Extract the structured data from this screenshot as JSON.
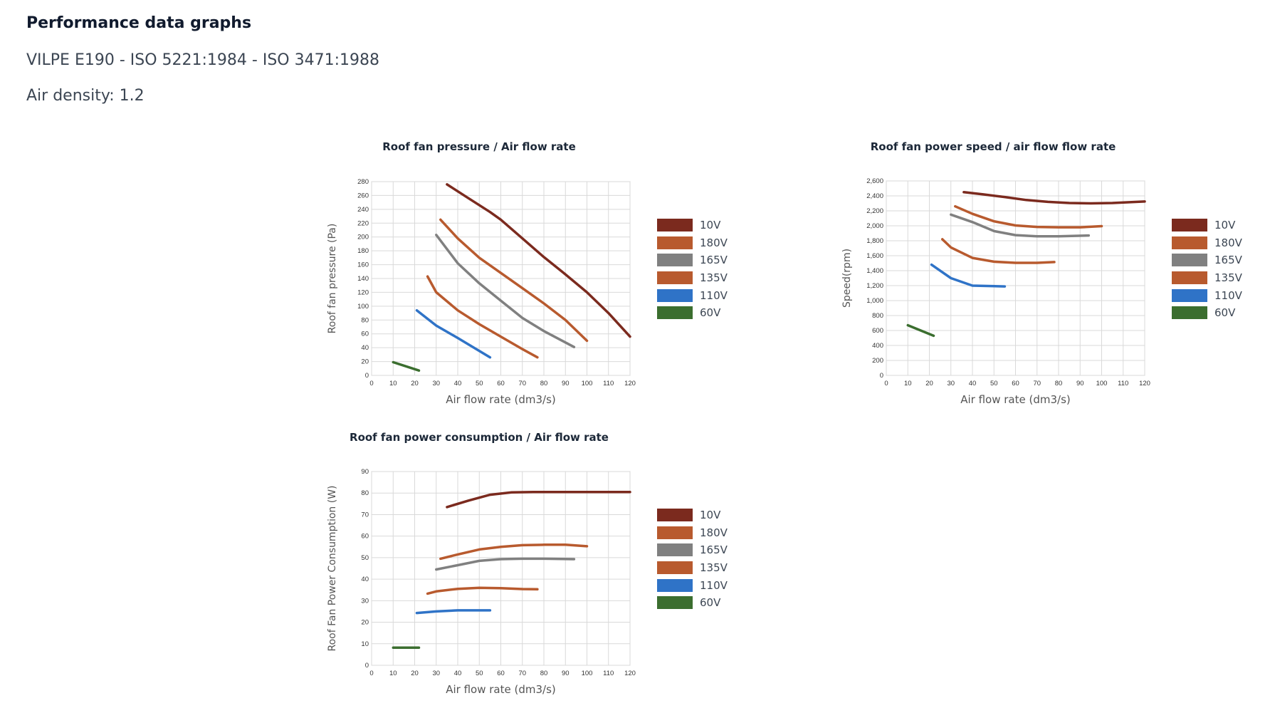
{
  "page": {
    "title": "Performance data graphs",
    "subtitle": "VILPE E190 - ISO 5221:1984 - ISO 3471:1988",
    "air_density": "Air density: 1.2"
  },
  "colors": {
    "10V": "#7b2a1e",
    "180V": "#b85a2e",
    "165V": "#808080",
    "135V": "#b85a2e",
    "110V": "#2f73c7",
    "60V": "#3b6e2f"
  },
  "chart_data": [
    {
      "type": "line",
      "title": "Roof fan pressure / Air flow rate",
      "xlabel": "Air flow rate (dm3/s)",
      "ylabel": "Roof fan pressure (Pa)",
      "xlim": [
        0,
        120
      ],
      "ylim": [
        0,
        280
      ],
      "xticks": [
        0,
        10,
        20,
        30,
        40,
        50,
        60,
        70,
        80,
        90,
        100,
        110,
        120
      ],
      "yticks": [
        0,
        20,
        40,
        60,
        80,
        100,
        120,
        140,
        160,
        180,
        200,
        220,
        240,
        260,
        280
      ],
      "ytick_labels": [
        "0",
        "20",
        "40",
        "60",
        "80",
        "100",
        "120",
        "140",
        "160",
        "180",
        "200",
        "220",
        "240",
        "260",
        "280"
      ],
      "grid": true,
      "legend_position": "right",
      "series": [
        {
          "name": "10V",
          "x": [
            35,
            45,
            55,
            60,
            70,
            80,
            90,
            100,
            110,
            120
          ],
          "y": [
            276,
            256,
            236,
            225,
            198,
            171,
            146,
            120,
            90,
            56
          ]
        },
        {
          "name": "180V",
          "x": [
            32,
            40,
            50,
            60,
            70,
            80,
            90,
            100
          ],
          "y": [
            225,
            198,
            170,
            148,
            126,
            104,
            80,
            50
          ]
        },
        {
          "name": "165V",
          "x": [
            30,
            40,
            50,
            60,
            70,
            80,
            94
          ],
          "y": [
            203,
            162,
            133,
            108,
            83,
            64,
            41
          ]
        },
        {
          "name": "135V",
          "x": [
            26,
            30,
            40,
            50,
            60,
            70,
            77
          ],
          "y": [
            143,
            120,
            94,
            74,
            56,
            38,
            26
          ]
        },
        {
          "name": "110V",
          "x": [
            21,
            30,
            40,
            55
          ],
          "y": [
            94,
            72,
            54,
            26
          ]
        },
        {
          "name": "60V",
          "x": [
            10,
            22
          ],
          "y": [
            19,
            7
          ]
        }
      ]
    },
    {
      "type": "line",
      "title": "Roof fan power speed / air flow flow rate",
      "xlabel": "Air flow rate (dm3/s)",
      "ylabel": "Speed(rpm)",
      "xlim": [
        0,
        120
      ],
      "ylim": [
        0,
        2600
      ],
      "xticks": [
        0,
        10,
        20,
        30,
        40,
        50,
        60,
        70,
        80,
        90,
        100,
        110,
        120
      ],
      "yticks": [
        0,
        200,
        400,
        600,
        800,
        1000,
        1200,
        1400,
        1600,
        1800,
        2000,
        2200,
        2400,
        2600
      ],
      "ytick_labels": [
        "0",
        "200",
        "400",
        "600",
        "800",
        "1,000",
        "1,200",
        "1,400",
        "1,600",
        "1,800",
        "2,000",
        "2,200",
        "2,400",
        "2,600"
      ],
      "grid": true,
      "legend_position": "right",
      "series": [
        {
          "name": "10V",
          "x": [
            36,
            45,
            55,
            65,
            75,
            85,
            95,
            105,
            120
          ],
          "y": [
            2450,
            2420,
            2385,
            2345,
            2320,
            2305,
            2300,
            2305,
            2325
          ]
        },
        {
          "name": "180V",
          "x": [
            32,
            40,
            50,
            60,
            70,
            80,
            90,
            100
          ],
          "y": [
            2260,
            2160,
            2060,
            2005,
            1985,
            1980,
            1980,
            1995
          ]
        },
        {
          "name": "165V",
          "x": [
            30,
            40,
            50,
            60,
            70,
            80,
            94
          ],
          "y": [
            2150,
            2050,
            1930,
            1875,
            1860,
            1860,
            1870
          ]
        },
        {
          "name": "135V",
          "x": [
            26,
            30,
            40,
            50,
            60,
            70,
            78
          ],
          "y": [
            1820,
            1710,
            1570,
            1520,
            1505,
            1505,
            1515
          ]
        },
        {
          "name": "110V",
          "x": [
            21,
            30,
            40,
            55
          ],
          "y": [
            1480,
            1300,
            1200,
            1190
          ]
        },
        {
          "name": "60V",
          "x": [
            10,
            22
          ],
          "y": [
            670,
            530
          ]
        }
      ]
    },
    {
      "type": "line",
      "title": "Roof fan power consumption / Air flow rate",
      "xlabel": "Air flow rate (dm3/s)",
      "ylabel": "Roof Fan Power Consumption (W)",
      "xlim": [
        0,
        120
      ],
      "ylim": [
        0,
        90
      ],
      "xticks": [
        0,
        10,
        20,
        30,
        40,
        50,
        60,
        70,
        80,
        90,
        100,
        110,
        120
      ],
      "yticks": [
        0,
        10,
        20,
        30,
        40,
        50,
        60,
        70,
        80,
        90
      ],
      "ytick_labels": [
        "0",
        "10",
        "20",
        "30",
        "40",
        "50",
        "60",
        "70",
        "80",
        "90"
      ],
      "grid": true,
      "legend_position": "right",
      "series": [
        {
          "name": "10V",
          "x": [
            35,
            45,
            55,
            65,
            75,
            85,
            95,
            105,
            120
          ],
          "y": [
            73.5,
            76.5,
            79.2,
            80.3,
            80.5,
            80.5,
            80.5,
            80.5,
            80.5
          ]
        },
        {
          "name": "180V",
          "x": [
            32,
            40,
            50,
            60,
            70,
            80,
            90,
            100
          ],
          "y": [
            49.5,
            51.5,
            53.8,
            55,
            55.8,
            56,
            56,
            55.3
          ]
        },
        {
          "name": "165V",
          "x": [
            30,
            40,
            50,
            60,
            70,
            80,
            94
          ],
          "y": [
            44.5,
            46.5,
            48.5,
            49.3,
            49.5,
            49.5,
            49.3
          ]
        },
        {
          "name": "135V",
          "x": [
            26,
            30,
            40,
            50,
            60,
            70,
            77
          ],
          "y": [
            33.3,
            34.3,
            35.5,
            36,
            35.8,
            35.4,
            35.3
          ]
        },
        {
          "name": "110V",
          "x": [
            21,
            30,
            40,
            55
          ],
          "y": [
            24.3,
            25,
            25.5,
            25.5
          ]
        },
        {
          "name": "60V",
          "x": [
            10,
            22
          ],
          "y": [
            8.2,
            8.2
          ]
        }
      ]
    }
  ]
}
